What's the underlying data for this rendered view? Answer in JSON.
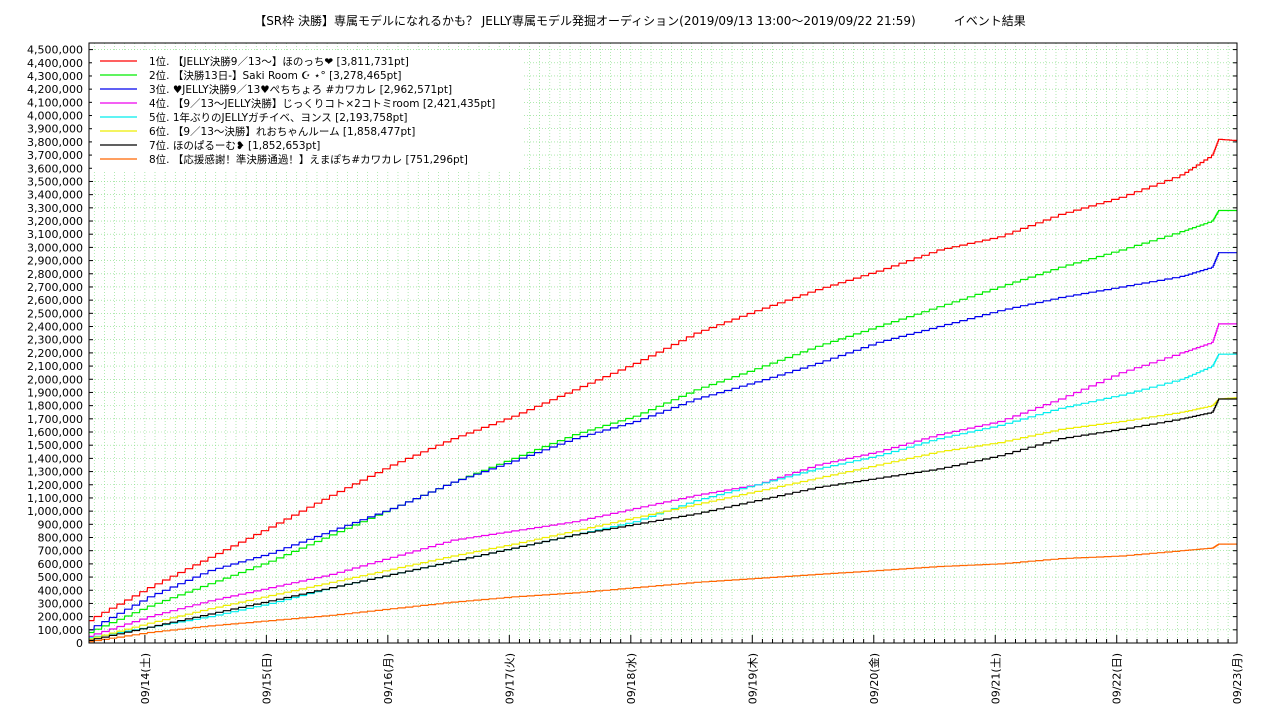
{
  "chart_data": {
    "type": "line",
    "title": "【SR枠 決勝】専属モデルになれるかも？ JELLY専属モデル発掘オーディション(2019/09/13 13:00～2019/09/22 21:59)          イベント結果",
    "xlabel": "",
    "ylabel": "",
    "ylim": [
      0,
      4550000
    ],
    "y_ticks": [
      0,
      100000,
      200000,
      300000,
      400000,
      500000,
      600000,
      700000,
      800000,
      900000,
      1000000,
      1100000,
      1200000,
      1300000,
      1400000,
      1500000,
      1600000,
      1700000,
      1800000,
      1900000,
      2000000,
      2100000,
      2200000,
      2300000,
      2400000,
      2500000,
      2600000,
      2700000,
      2800000,
      2900000,
      3000000,
      3100000,
      3200000,
      3300000,
      3400000,
      3500000,
      3600000,
      3700000,
      3800000,
      3900000,
      4000000,
      4100000,
      4200000,
      4300000,
      4400000,
      4500000
    ],
    "y_tick_labels": [
      "0",
      "100,000",
      "200,000",
      "300,000",
      "400,000",
      "500,000",
      "600,000",
      "700,000",
      "800,000",
      "900,000",
      "1,000,000",
      "1,100,000",
      "1,200,000",
      "1,300,000",
      "1,400,000",
      "1,500,000",
      "1,600,000",
      "1,700,000",
      "1,800,000",
      "1,900,000",
      "2,000,000",
      "2,100,000",
      "2,200,000",
      "2,300,000",
      "2,400,000",
      "2,500,000",
      "2,600,000",
      "2,700,000",
      "2,800,000",
      "2,900,000",
      "3,000,000",
      "3,100,000",
      "3,200,000",
      "3,300,000",
      "3,400,000",
      "3,500,000",
      "3,600,000",
      "3,700,000",
      "3,800,000",
      "3,900,000",
      "4,000,000",
      "4,100,000",
      "4,200,000",
      "4,300,000",
      "4,400,000",
      "4,500,000"
    ],
    "x_range": [
      0,
      9.45
    ],
    "x_ticks": [
      0.46,
      1.46,
      2.46,
      3.46,
      4.46,
      5.46,
      6.46,
      7.46,
      8.46,
      9.46
    ],
    "x_tick_labels": [
      "09/14(土)",
      "09/15(日)",
      "09/16(月)",
      "09/17(火)",
      "09/18(水)",
      "09/19(木)",
      "09/20(金)",
      "09/21(土)",
      "09/22(日)",
      "09/23(月)"
    ],
    "grid": true,
    "legend_position": "top-left",
    "series": [
      {
        "name": "1位. 【JELLY決勝9／13～】ほのっち❤ [3,811,731pt]",
        "color": "#ff0000",
        "points": [
          [
            0,
            0.17
          ],
          [
            0.5,
            0.42
          ],
          [
            1,
            0.65
          ],
          [
            1.5,
            0.88
          ],
          [
            2,
            1.12
          ],
          [
            2.5,
            1.35
          ],
          [
            3,
            1.55
          ],
          [
            3.5,
            1.72
          ],
          [
            4,
            1.92
          ],
          [
            4.5,
            2.12
          ],
          [
            5,
            2.35
          ],
          [
            5.5,
            2.52
          ],
          [
            6,
            2.68
          ],
          [
            6.5,
            2.82
          ],
          [
            7,
            2.98
          ],
          [
            7.5,
            3.08
          ],
          [
            8,
            3.25
          ],
          [
            8.5,
            3.38
          ],
          [
            9,
            3.55
          ],
          [
            9.25,
            3.7
          ],
          [
            9.3,
            3.82
          ],
          [
            9.45,
            3.81
          ]
        ]
      },
      {
        "name": "2位. 【決勝13日-】Saki Room ☪︎ ⋆° [3,278,465pt]",
        "color": "#00ee00",
        "points": [
          [
            0,
            0.08
          ],
          [
            0.5,
            0.28
          ],
          [
            1,
            0.45
          ],
          [
            1.5,
            0.62
          ],
          [
            2,
            0.82
          ],
          [
            2.5,
            1.02
          ],
          [
            3,
            1.22
          ],
          [
            3.5,
            1.4
          ],
          [
            4,
            1.58
          ],
          [
            4.5,
            1.72
          ],
          [
            5,
            1.92
          ],
          [
            5.5,
            2.08
          ],
          [
            6,
            2.25
          ],
          [
            6.5,
            2.4
          ],
          [
            7,
            2.55
          ],
          [
            7.5,
            2.7
          ],
          [
            8,
            2.85
          ],
          [
            8.5,
            2.98
          ],
          [
            9,
            3.12
          ],
          [
            9.25,
            3.2
          ],
          [
            9.3,
            3.28
          ],
          [
            9.45,
            3.28
          ]
        ]
      },
      {
        "name": "3位. ♥JELLY決勝9／13♥ぺちちょろ #カワカレ [2,962,571pt]",
        "color": "#0000ee",
        "points": [
          [
            0,
            0.1
          ],
          [
            0.5,
            0.35
          ],
          [
            1,
            0.55
          ],
          [
            1.5,
            0.68
          ],
          [
            2,
            0.85
          ],
          [
            2.5,
            1.02
          ],
          [
            3,
            1.22
          ],
          [
            3.5,
            1.38
          ],
          [
            4,
            1.55
          ],
          [
            4.5,
            1.68
          ],
          [
            5,
            1.85
          ],
          [
            5.5,
            1.98
          ],
          [
            6,
            2.12
          ],
          [
            6.5,
            2.28
          ],
          [
            7,
            2.4
          ],
          [
            7.5,
            2.52
          ],
          [
            8,
            2.62
          ],
          [
            8.5,
            2.7
          ],
          [
            9,
            2.78
          ],
          [
            9.25,
            2.85
          ],
          [
            9.3,
            2.96
          ],
          [
            9.45,
            2.96
          ]
        ]
      },
      {
        "name": "4位. 【9／13～JELLY決勝】じっくりコト×2コトミroom [2,421,435pt]",
        "color": "#ee00ee",
        "points": [
          [
            0,
            0.05
          ],
          [
            0.5,
            0.2
          ],
          [
            1,
            0.32
          ],
          [
            1.5,
            0.42
          ],
          [
            2,
            0.52
          ],
          [
            2.5,
            0.65
          ],
          [
            3,
            0.78
          ],
          [
            3.5,
            0.85
          ],
          [
            4,
            0.92
          ],
          [
            4.5,
            1.02
          ],
          [
            5,
            1.12
          ],
          [
            5.5,
            1.2
          ],
          [
            6,
            1.35
          ],
          [
            6.5,
            1.45
          ],
          [
            7,
            1.58
          ],
          [
            7.5,
            1.68
          ],
          [
            8,
            1.85
          ],
          [
            8.5,
            2.05
          ],
          [
            9,
            2.2
          ],
          [
            9.25,
            2.28
          ],
          [
            9.3,
            2.42
          ],
          [
            9.45,
            2.42
          ]
        ]
      },
      {
        "name": "5位. 1年ぶりのJELLYガチイベ、ヨンス [2,193,758pt]",
        "color": "#00eeee",
        "points": [
          [
            0,
            0.04
          ],
          [
            0.5,
            0.12
          ],
          [
            1,
            0.2
          ],
          [
            1.5,
            0.3
          ],
          [
            2,
            0.42
          ],
          [
            2.5,
            0.52
          ],
          [
            3,
            0.62
          ],
          [
            3.5,
            0.72
          ],
          [
            4,
            0.82
          ],
          [
            4.5,
            0.92
          ],
          [
            5,
            1.08
          ],
          [
            5.5,
            1.2
          ],
          [
            6,
            1.32
          ],
          [
            6.5,
            1.42
          ],
          [
            7,
            1.55
          ],
          [
            7.5,
            1.65
          ],
          [
            8,
            1.78
          ],
          [
            8.5,
            1.88
          ],
          [
            9,
            2.0
          ],
          [
            9.25,
            2.1
          ],
          [
            9.3,
            2.19
          ],
          [
            9.45,
            2.19
          ]
        ]
      },
      {
        "name": "6位. 【9／13～決勝】れおちゃんルーム [1,858,477pt]",
        "color": "#eeee00",
        "points": [
          [
            0,
            0.03
          ],
          [
            0.5,
            0.15
          ],
          [
            1,
            0.26
          ],
          [
            1.5,
            0.36
          ],
          [
            2,
            0.46
          ],
          [
            2.5,
            0.56
          ],
          [
            3,
            0.66
          ],
          [
            3.5,
            0.75
          ],
          [
            4,
            0.85
          ],
          [
            4.5,
            0.95
          ],
          [
            5,
            1.05
          ],
          [
            5.5,
            1.15
          ],
          [
            6,
            1.25
          ],
          [
            6.5,
            1.35
          ],
          [
            7,
            1.45
          ],
          [
            7.5,
            1.52
          ],
          [
            8,
            1.62
          ],
          [
            8.5,
            1.68
          ],
          [
            9,
            1.75
          ],
          [
            9.25,
            1.8
          ],
          [
            9.3,
            1.85
          ],
          [
            9.45,
            1.86
          ]
        ]
      },
      {
        "name": "7位. ほのぱるーむ❥ [1,852,653pt]",
        "color": "#000000",
        "points": [
          [
            0,
            0.02
          ],
          [
            0.5,
            0.12
          ],
          [
            1,
            0.22
          ],
          [
            1.5,
            0.32
          ],
          [
            2,
            0.42
          ],
          [
            2.5,
            0.52
          ],
          [
            3,
            0.62
          ],
          [
            3.5,
            0.72
          ],
          [
            4,
            0.82
          ],
          [
            4.5,
            0.9
          ],
          [
            5,
            0.98
          ],
          [
            5.5,
            1.08
          ],
          [
            6,
            1.18
          ],
          [
            6.5,
            1.25
          ],
          [
            7,
            1.32
          ],
          [
            7.5,
            1.42
          ],
          [
            8,
            1.55
          ],
          [
            8.5,
            1.62
          ],
          [
            9,
            1.7
          ],
          [
            9.25,
            1.75
          ],
          [
            9.3,
            1.85
          ],
          [
            9.45,
            1.85
          ]
        ]
      },
      {
        "name": "8位. 【応援感謝！準決勝通過！】えまぽち#カワカレ [751,296pt]",
        "color": "#ff6600",
        "points": [
          [
            0,
            0.01
          ],
          [
            0.5,
            0.08
          ],
          [
            1,
            0.13
          ],
          [
            1.5,
            0.17
          ],
          [
            2,
            0.21
          ],
          [
            2.5,
            0.26
          ],
          [
            3,
            0.31
          ],
          [
            3.5,
            0.35
          ],
          [
            4,
            0.38
          ],
          [
            4.5,
            0.42
          ],
          [
            5,
            0.46
          ],
          [
            5.5,
            0.49
          ],
          [
            6,
            0.52
          ],
          [
            6.5,
            0.55
          ],
          [
            7,
            0.58
          ],
          [
            7.5,
            0.6
          ],
          [
            8,
            0.64
          ],
          [
            8.5,
            0.66
          ],
          [
            9,
            0.7
          ],
          [
            9.25,
            0.72
          ],
          [
            9.3,
            0.75
          ],
          [
            9.45,
            0.75
          ]
        ]
      }
    ]
  }
}
